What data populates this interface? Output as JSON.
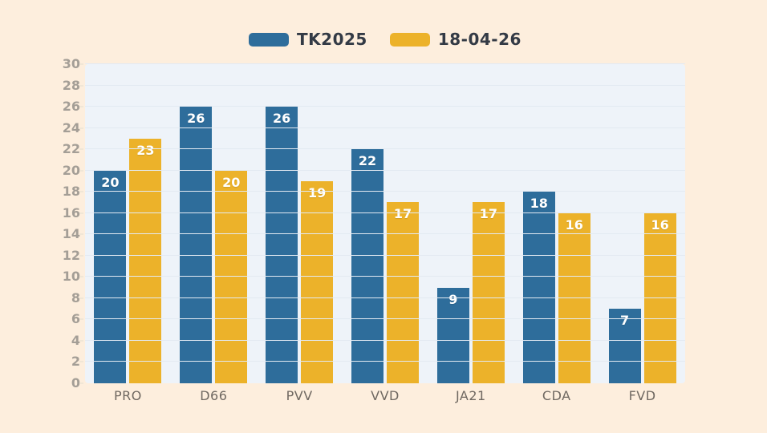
{
  "page": {
    "background_color": "#fdeedd",
    "plot_background_color": "#eef3f9",
    "gridline_color": "#e3eaf2",
    "axis_label_color": "#a49e96",
    "category_label_color": "#6f6861",
    "legend_text_color": "#333a45",
    "value_label_color": "#ffffff"
  },
  "chart_data": {
    "type": "bar",
    "categories": [
      "PRO",
      "D66",
      "PVV",
      "VVD",
      "JA21",
      "CDA",
      "FVD"
    ],
    "series": [
      {
        "name": "TK2025",
        "color": "#2e6d9b",
        "values": [
          20,
          26,
          26,
          22,
          9,
          18,
          7
        ]
      },
      {
        "name": "18-04-26",
        "color": "#ecb22a",
        "values": [
          23,
          20,
          19,
          17,
          17,
          16,
          16
        ]
      }
    ],
    "ylim": [
      0,
      30
    ],
    "ytick_step": 2,
    "yticks": [
      0,
      2,
      4,
      6,
      8,
      10,
      12,
      14,
      16,
      18,
      20,
      22,
      24,
      26,
      28,
      30
    ],
    "grid": "horizontal",
    "legend_position": "top",
    "value_labels_position": "inside-top"
  }
}
